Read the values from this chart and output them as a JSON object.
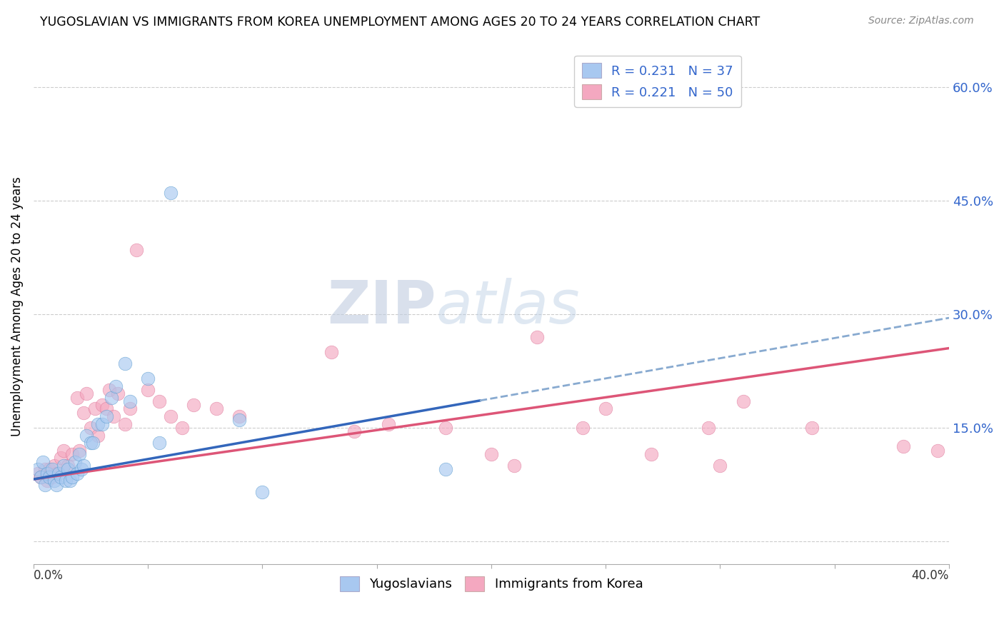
{
  "title": "YUGOSLAVIAN VS IMMIGRANTS FROM KOREA UNEMPLOYMENT AMONG AGES 20 TO 24 YEARS CORRELATION CHART",
  "source": "Source: ZipAtlas.com",
  "ylabel": "Unemployment Among Ages 20 to 24 years",
  "ytick_labels": [
    "",
    "15.0%",
    "30.0%",
    "45.0%",
    "60.0%"
  ],
  "ytick_values": [
    0.0,
    0.15,
    0.3,
    0.45,
    0.6
  ],
  "xlim": [
    0.0,
    0.4
  ],
  "ylim": [
    -0.03,
    0.65
  ],
  "legend_bottom": [
    "Yugoslavians",
    "Immigrants from Korea"
  ],
  "watermark_zip": "ZIP",
  "watermark_atlas": "atlas",
  "blue_color": "#a8c8f0",
  "pink_color": "#f4a8c0",
  "blue_edge": "#5599cc",
  "pink_edge": "#dd7799",
  "blue_line_color": "#3366bb",
  "pink_line_color": "#dd5577",
  "blue_dashed_color": "#88aad0",
  "r_blue": 0.231,
  "n_blue": 37,
  "r_pink": 0.221,
  "n_pink": 50,
  "blue_line_x0": 0.0,
  "blue_line_y0": 0.082,
  "blue_line_x1": 0.4,
  "blue_line_y1": 0.295,
  "pink_line_x0": 0.0,
  "pink_line_y0": 0.082,
  "pink_line_x1": 0.4,
  "pink_line_y1": 0.255,
  "blue_points_x": [
    0.002,
    0.003,
    0.004,
    0.005,
    0.006,
    0.007,
    0.008,
    0.009,
    0.01,
    0.011,
    0.012,
    0.013,
    0.014,
    0.015,
    0.016,
    0.017,
    0.018,
    0.019,
    0.02,
    0.021,
    0.022,
    0.023,
    0.025,
    0.026,
    0.028,
    0.03,
    0.032,
    0.034,
    0.036,
    0.04,
    0.042,
    0.05,
    0.055,
    0.06,
    0.09,
    0.1,
    0.18
  ],
  "blue_points_y": [
    0.095,
    0.085,
    0.105,
    0.075,
    0.09,
    0.085,
    0.095,
    0.08,
    0.075,
    0.09,
    0.085,
    0.1,
    0.08,
    0.095,
    0.08,
    0.085,
    0.105,
    0.09,
    0.115,
    0.095,
    0.1,
    0.14,
    0.13,
    0.13,
    0.155,
    0.155,
    0.165,
    0.19,
    0.205,
    0.235,
    0.185,
    0.215,
    0.13,
    0.46,
    0.16,
    0.065,
    0.095
  ],
  "pink_points_x": [
    0.002,
    0.003,
    0.005,
    0.006,
    0.007,
    0.008,
    0.009,
    0.01,
    0.012,
    0.013,
    0.015,
    0.017,
    0.019,
    0.02,
    0.022,
    0.023,
    0.025,
    0.027,
    0.028,
    0.03,
    0.032,
    0.033,
    0.035,
    0.037,
    0.04,
    0.042,
    0.045,
    0.05,
    0.055,
    0.06,
    0.065,
    0.07,
    0.08,
    0.09,
    0.13,
    0.14,
    0.155,
    0.18,
    0.2,
    0.21,
    0.22,
    0.24,
    0.25,
    0.27,
    0.295,
    0.3,
    0.31,
    0.34,
    0.38,
    0.395
  ],
  "pink_points_y": [
    0.09,
    0.085,
    0.095,
    0.08,
    0.095,
    0.085,
    0.1,
    0.09,
    0.11,
    0.12,
    0.1,
    0.115,
    0.19,
    0.12,
    0.17,
    0.195,
    0.15,
    0.175,
    0.14,
    0.18,
    0.175,
    0.2,
    0.165,
    0.195,
    0.155,
    0.175,
    0.385,
    0.2,
    0.185,
    0.165,
    0.15,
    0.18,
    0.175,
    0.165,
    0.25,
    0.145,
    0.155,
    0.15,
    0.115,
    0.1,
    0.27,
    0.15,
    0.175,
    0.115,
    0.15,
    0.1,
    0.185,
    0.15,
    0.125,
    0.12
  ]
}
